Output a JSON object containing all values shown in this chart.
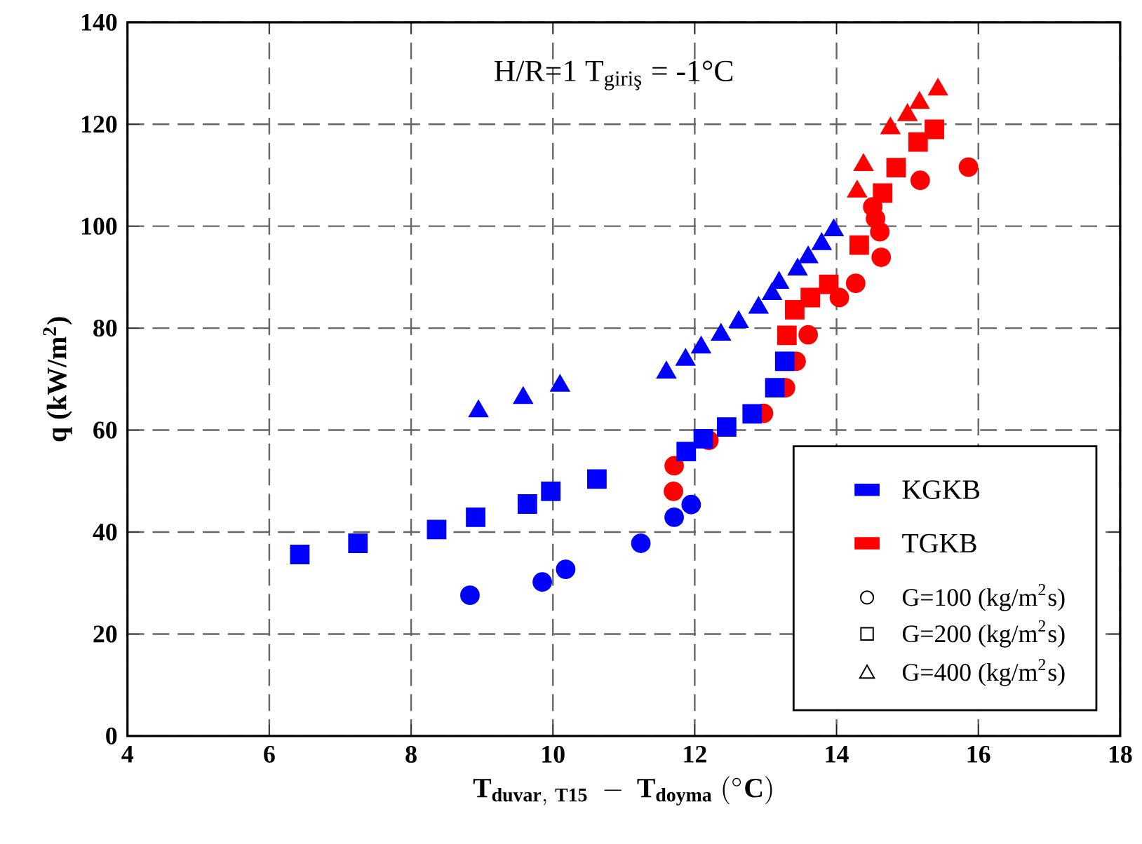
{
  "chart_data": {
    "type": "scatter",
    "title": "H/R=1 T$_{giriş}$ = -1°C",
    "xlabel": "\\mathbf{T_{duvar,\\ T15}\\ -\\ T_{doyma}\\ (^{\\circ}C)}",
    "ylabel": "q (kW/m$^{2}$)",
    "xlim": [
      4,
      18
    ],
    "ylim": [
      0,
      140
    ],
    "xticks": [
      4,
      6,
      8,
      10,
      12,
      14,
      16,
      18
    ],
    "yticks": [
      0,
      20,
      40,
      60,
      80,
      100,
      120,
      140
    ],
    "grid": true,
    "legend": "bottom right",
    "annotations": [
      "G=100 (kg/m$^{2}$s)",
      "G=200 (kg/m$^{2}$s)",
      "G=400 (kg/m$^{2}$s)"
    ],
    "series": [
      {
        "name": "KGKB",
        "color": "#0000ff",
        "marker": "circle",
        "x": [
          8.83,
          9.85,
          10.18,
          11.24,
          11.71,
          11.95
        ],
        "values": [
          27.6,
          30.2,
          32.7,
          37.8,
          42.9,
          45.4
        ]
      },
      {
        "color": "#0000ff",
        "marker": "square",
        "x": [
          6.43,
          7.25,
          8.36,
          8.91,
          9.64,
          9.97,
          10.62,
          11.88,
          12.12,
          12.45,
          12.81,
          13.13,
          13.27
        ],
        "values": [
          35.6,
          37.8,
          40.5,
          42.9,
          45.5,
          48.0,
          50.4,
          55.8,
          58.3,
          60.6,
          63.2,
          68.3,
          73.5
        ]
      },
      {
        "color": "#0000ff",
        "marker": "triangle",
        "x": [
          8.95,
          9.58,
          10.1,
          11.6,
          11.87,
          12.09,
          12.37,
          12.62,
          12.9,
          13.09,
          13.19,
          13.45,
          13.6,
          13.79,
          13.96
        ],
        "values": [
          63.7,
          66.3,
          68.7,
          71.3,
          73.8,
          76.2,
          78.7,
          81.2,
          84.0,
          86.7,
          88.9,
          91.5,
          93.9,
          96.5,
          99.2
        ]
      },
      {
        "name": "TGKB",
        "color": "#ff0000",
        "marker": "circle",
        "x": [
          11.7,
          11.71,
          12.2,
          12.97,
          13.28,
          13.43,
          13.6,
          14.04,
          14.27,
          14.51,
          14.55,
          14.61,
          14.63,
          15.18,
          15.86
        ],
        "values": [
          48.0,
          53.0,
          58.0,
          63.3,
          68.3,
          73.5,
          78.7,
          86.0,
          88.8,
          103.8,
          101.5,
          98.9,
          93.9,
          109.0,
          111.6
        ]
      },
      {
        "color": "#ff0000",
        "marker": "square",
        "x": [
          13.3,
          13.41,
          13.63,
          13.89,
          14.32,
          14.65,
          14.84,
          15.15,
          15.38
        ],
        "values": [
          78.6,
          83.6,
          86.0,
          88.6,
          96.3,
          106.5,
          111.5,
          116.5,
          119.0
        ]
      },
      {
        "color": "#ff0000",
        "marker": "triangle",
        "x": [
          14.29,
          14.38,
          14.76,
          15.0,
          15.17,
          15.43
        ],
        "values": [
          106.8,
          112.0,
          119.2,
          121.8,
          124.2,
          126.8
        ]
      }
    ]
  }
}
